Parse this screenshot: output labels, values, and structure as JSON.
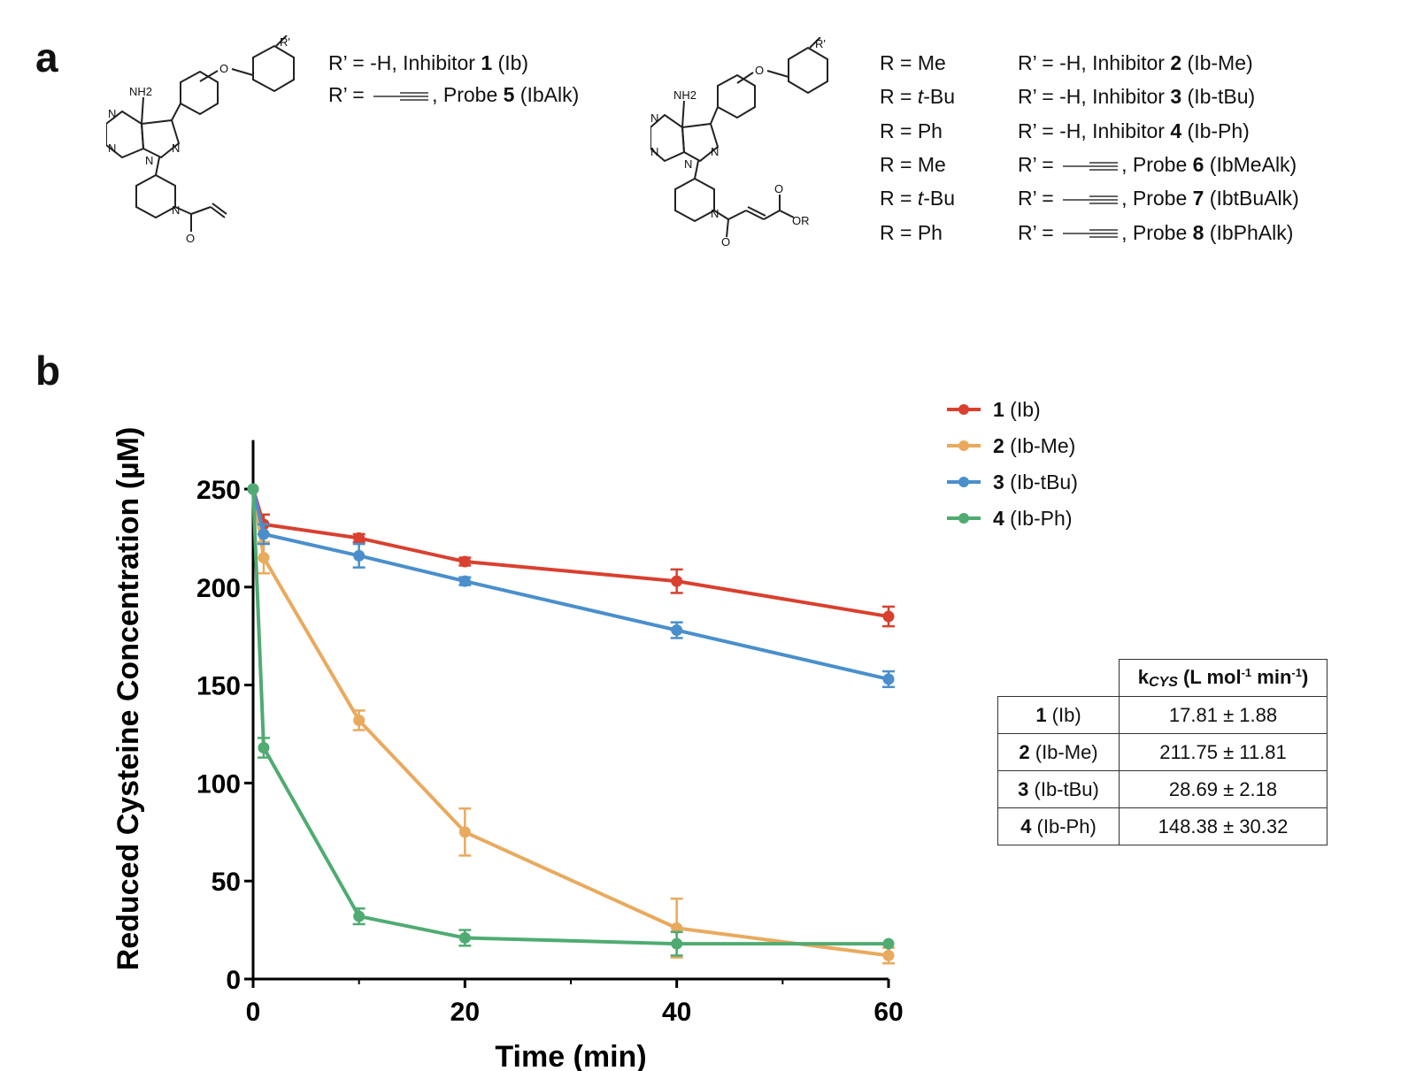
{
  "panel_a": {
    "letter": "a",
    "left_structure_labels": {
      "rprime": "R'",
      "nh2": "NH2",
      "n": "N",
      "o": "O"
    },
    "left_list": [
      {
        "prefix": "R’ = -H, Inhibitor ",
        "bold": "1",
        "suffix": " (Ib)",
        "alkyne": false
      },
      {
        "prefix": "R’ = ",
        "bold": "5",
        "mid": ", Probe ",
        "suffix": " (IbAlk)",
        "alkyne": true
      }
    ],
    "right_structure_labels": {
      "rprime": "R'",
      "nh2": "NH2",
      "n": "N",
      "o": "O",
      "or": "OR"
    },
    "right_list": [
      {
        "r": "R = Me",
        "rprime_prefix": "R’ = -H, Inhibitor ",
        "bold": "2",
        "suffix": " (Ib-Me)",
        "alkyne": false
      },
      {
        "r": "R = t-Bu",
        "rprime_prefix": "R’ = -H, Inhibitor ",
        "bold": "3",
        "suffix": " (Ib-tBu)",
        "alkyne": false
      },
      {
        "r": "R = Ph",
        "rprime_prefix": "R’ = -H, Inhibitor ",
        "bold": "4",
        "suffix": " (Ib-Ph)",
        "alkyne": false
      },
      {
        "r": "R = Me",
        "rprime_prefix": "R’ = ",
        "mid": ", Probe ",
        "bold": "6",
        "suffix": " (IbMeAlk)",
        "alkyne": true
      },
      {
        "r": "R = t-Bu",
        "rprime_prefix": "R’ = ",
        "mid": ", Probe ",
        "bold": "7",
        "suffix": " (IbtBuAlk)",
        "alkyne": true
      },
      {
        "r": "R = Ph",
        "rprime_prefix": "R’ = ",
        "mid": ", Probe ",
        "bold": "8",
        "suffix": " (IbPhAlk)",
        "alkyne": true
      }
    ]
  },
  "panel_b": {
    "letter": "b",
    "legend": [
      {
        "bold": "1",
        "text": " (Ib)",
        "color": "#d9402f"
      },
      {
        "bold": "2",
        "text": " (Ib-Me)",
        "color": "#e9aa5e"
      },
      {
        "bold": "3",
        "text": " (Ib-tBu)",
        "color": "#4a8fcc"
      },
      {
        "bold": "4",
        "text": " (Ib-Ph)",
        "color": "#4fab72"
      }
    ],
    "table": {
      "header": {
        "k": "k",
        "sub": "CYS",
        "unit_pre": " (L mol",
        "exp1": "-1",
        "unit_mid": " min",
        "exp2": "-1",
        "unit_post": ")"
      },
      "rows": [
        {
          "bold": "1",
          "name": " (Ib)",
          "value": "17.81 ± 1.88"
        },
        {
          "bold": "2",
          "name": " (Ib-Me)",
          "value": "211.75 ± 11.81"
        },
        {
          "bold": "3",
          "name": " (Ib-tBu)",
          "value": "28.69 ± 2.18"
        },
        {
          "bold": "4",
          "name": " (Ib-Ph)",
          "value": "148.38 ± 30.32"
        }
      ]
    }
  },
  "chart_data": {
    "type": "line",
    "xlabel": "Time (min)",
    "ylabel": "Reduced Cysteine Concentration (µM)",
    "xlim": [
      0,
      60
    ],
    "ylim": [
      0,
      275
    ],
    "xticks": [
      0,
      20,
      40,
      60
    ],
    "yticks": [
      0,
      50,
      100,
      150,
      200,
      250
    ],
    "grid": false,
    "legend_position": "top-right",
    "series": [
      {
        "name": "1 (Ib)",
        "color": "#d9402f",
        "points": [
          [
            0,
            250,
            0
          ],
          [
            1,
            232,
            5
          ],
          [
            10,
            225,
            2
          ],
          [
            20,
            213,
            2
          ],
          [
            40,
            203,
            6
          ],
          [
            60,
            185,
            5
          ]
        ]
      },
      {
        "name": "2 (Ib-Me)",
        "color": "#e9aa5e",
        "points": [
          [
            0,
            250,
            0
          ],
          [
            1,
            215,
            8
          ],
          [
            10,
            132,
            5
          ],
          [
            20,
            75,
            12
          ],
          [
            40,
            26,
            15
          ],
          [
            60,
            12,
            4
          ]
        ]
      },
      {
        "name": "3 (Ib-tBu)",
        "color": "#4a8fcc",
        "points": [
          [
            0,
            250,
            0
          ],
          [
            1,
            227,
            5
          ],
          [
            10,
            216,
            6
          ],
          [
            20,
            203,
            2
          ],
          [
            40,
            178,
            4
          ],
          [
            60,
            153,
            4
          ]
        ]
      },
      {
        "name": "4 (Ib-Ph)",
        "color": "#4fab72",
        "points": [
          [
            0,
            250,
            0
          ],
          [
            1,
            118,
            5
          ],
          [
            10,
            32,
            4
          ],
          [
            20,
            21,
            4
          ],
          [
            40,
            18,
            6
          ],
          [
            60,
            18,
            0
          ]
        ]
      }
    ]
  }
}
